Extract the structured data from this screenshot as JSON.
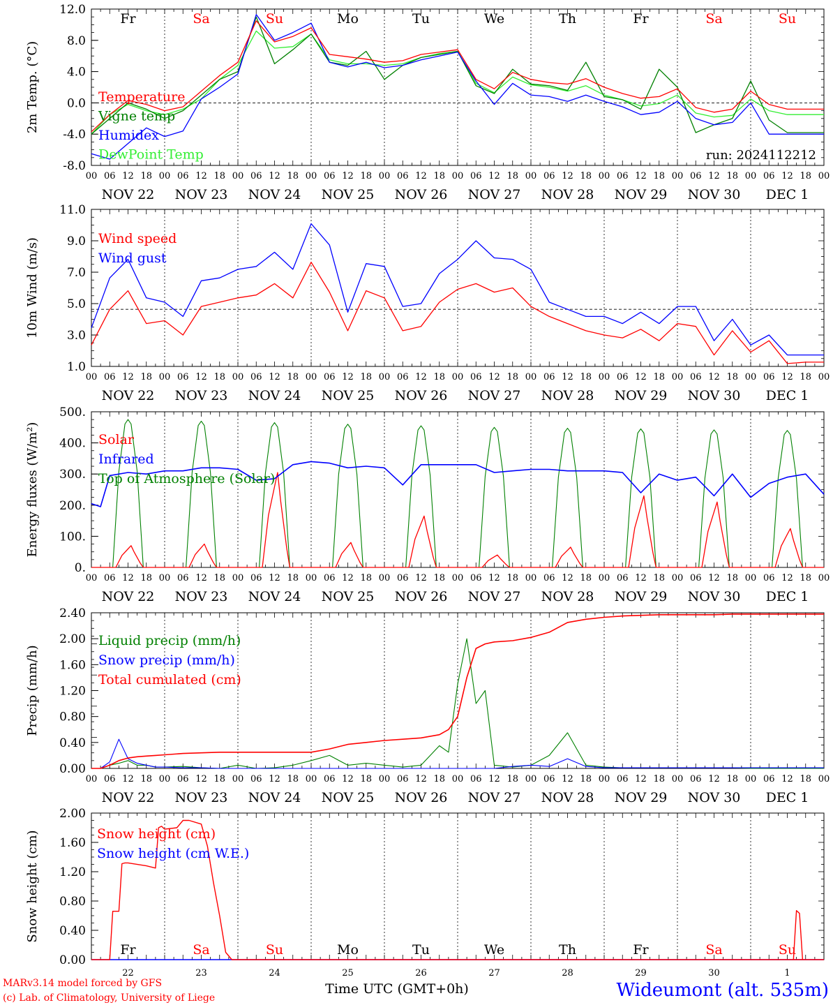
{
  "footer": {
    "credit_line1": "MARv3.14 model forced by GFS",
    "credit_line2": "(c) Lab. of Climatology, University of Liege",
    "time_label": "Time UTC (GMT+0h)",
    "station": "Wideumont (alt. 535m)"
  },
  "colors": {
    "red": "#ff0000",
    "blue": "#0000ff",
    "green": "#008000",
    "lightgreen": "#33ee33",
    "black": "#000000"
  },
  "common": {
    "day_labels": [
      "Fr",
      "Sa",
      "Su",
      "Mo",
      "Tu",
      "We",
      "Th",
      "Fr",
      "Sa",
      "Su"
    ],
    "day_label_colors": [
      "black",
      "red",
      "red",
      "black",
      "black",
      "black",
      "black",
      "black",
      "red",
      "red"
    ],
    "date_labels": [
      "NOV 22",
      "NOV 23",
      "NOV 24",
      "NOV 25",
      "NOV 26",
      "NOV 27",
      "NOV 28",
      "NOV 29",
      "NOV 30",
      "DEC  1"
    ],
    "hour_labels": [
      "00",
      "06",
      "12",
      "18"
    ],
    "bottom_day_numbers": [
      "22",
      "23",
      "24",
      "25",
      "26",
      "27",
      "28",
      "29",
      "30",
      "1"
    ]
  },
  "chart_data": [
    {
      "type": "line",
      "ylabel": "2m Temp. (°C)",
      "ylim": [
        -8,
        12
      ],
      "yticks": [
        "-8.0",
        "-4.0",
        "0.0",
        "4.0",
        "8.0",
        "12.0"
      ],
      "reference_line": 0,
      "annotation": "run: 2024112212",
      "x_hours": [
        0,
        6,
        12,
        18,
        24,
        30,
        36,
        42,
        48,
        54,
        60,
        66,
        72,
        78,
        84,
        90,
        96,
        102,
        108,
        114,
        120,
        126,
        132,
        138,
        144,
        150,
        156,
        162,
        168,
        174,
        180,
        186,
        192,
        198,
        204,
        210,
        216,
        222,
        228,
        234,
        240
      ],
      "series": [
        {
          "name": "Temperature",
          "color": "red",
          "values": [
            -3.7,
            -1.5,
            0.3,
            -0.2,
            -1.0,
            -0.5,
            1.5,
            3.5,
            5.2,
            10.5,
            7.8,
            8.5,
            9.6,
            6.2,
            5.9,
            5.6,
            5.2,
            5.4,
            6.2,
            6.5,
            6.8,
            3.0,
            1.8,
            3.9,
            3.0,
            2.6,
            2.4,
            3.1,
            2.0,
            1.2,
            0.6,
            0.8,
            1.8,
            -0.6,
            -1.2,
            -0.8,
            1.5,
            -0.2,
            -0.8,
            -0.8,
            -0.8
          ]
        },
        {
          "name": "Vigne temp",
          "color": "green",
          "values": [
            -4.0,
            -2.0,
            0.0,
            -0.8,
            -2.0,
            -1.0,
            1.0,
            3.0,
            4.0,
            11.0,
            5.0,
            6.8,
            8.8,
            5.2,
            4.8,
            6.6,
            3.0,
            4.8,
            5.8,
            6.2,
            6.6,
            2.2,
            1.2,
            4.3,
            2.4,
            2.2,
            1.6,
            5.2,
            0.8,
            0.4,
            -0.8,
            4.3,
            2.0,
            -3.8,
            -2.8,
            -2.0,
            2.8,
            -2.2,
            -3.8,
            -3.8,
            -3.8
          ]
        },
        {
          "name": "Humidex",
          "color": "blue",
          "values": [
            -6.5,
            -7.2,
            -5.2,
            -3.2,
            -4.3,
            -3.6,
            0.5,
            2.0,
            3.7,
            11.3,
            8.0,
            9.0,
            10.2,
            5.2,
            4.6,
            5.2,
            4.5,
            4.8,
            5.5,
            6.0,
            6.5,
            2.8,
            -0.2,
            2.5,
            1.0,
            0.8,
            0.2,
            1.0,
            0.2,
            -0.5,
            -1.5,
            -1.2,
            0.2,
            -2.0,
            -2.8,
            -2.5,
            0.0,
            -4.0,
            -4.0,
            -4.0,
            -4.0
          ]
        },
        {
          "name": "DewPoint Temp",
          "color": "lightgreen",
          "values": [
            -4.0,
            -1.5,
            -0.2,
            -1.0,
            -1.5,
            -0.8,
            0.5,
            3.0,
            4.8,
            9.2,
            7.0,
            7.2,
            8.8,
            5.5,
            5.0,
            5.0,
            4.8,
            5.0,
            5.8,
            6.3,
            6.6,
            2.5,
            1.3,
            3.3,
            2.3,
            2.0,
            1.5,
            2.2,
            1.0,
            0.4,
            -0.4,
            -0.1,
            1.0,
            -1.3,
            -1.8,
            -1.6,
            0.5,
            -1.0,
            -1.5,
            -1.5,
            -1.5
          ]
        }
      ]
    },
    {
      "type": "line",
      "ylabel": "10m Wind (m/s)",
      "ylim": [
        1,
        12
      ],
      "yticks": [
        "1.0",
        "3.0",
        "5.0",
        "7.0",
        "9.0",
        "11.0"
      ],
      "reference_line": 5,
      "x_hours": [
        0,
        6,
        12,
        18,
        24,
        30,
        36,
        42,
        48,
        54,
        60,
        66,
        72,
        78,
        84,
        90,
        96,
        102,
        108,
        114,
        120,
        126,
        132,
        138,
        144,
        150,
        156,
        162,
        168,
        174,
        180,
        186,
        192,
        198,
        204,
        210,
        216,
        222,
        228,
        234,
        240
      ],
      "series": [
        {
          "name": "Wind speed",
          "color": "red",
          "values": [
            2.5,
            5.0,
            6.3,
            4.0,
            4.2,
            3.2,
            5.2,
            5.5,
            5.8,
            6.0,
            6.8,
            5.8,
            8.3,
            6.2,
            3.5,
            6.3,
            5.8,
            3.5,
            3.8,
            5.5,
            6.4,
            6.8,
            6.2,
            6.5,
            5.2,
            4.5,
            4.0,
            3.5,
            3.2,
            3.0,
            3.6,
            2.8,
            4.0,
            3.8,
            1.8,
            3.5,
            2.0,
            2.8,
            1.2,
            1.3,
            1.3
          ]
        },
        {
          "name": "Wind gust",
          "color": "blue",
          "values": [
            3.7,
            7.2,
            8.5,
            5.8,
            5.5,
            4.5,
            7.0,
            7.2,
            7.8,
            8.0,
            9.0,
            7.8,
            11.0,
            9.5,
            4.8,
            8.2,
            8.0,
            5.2,
            5.4,
            7.5,
            8.5,
            9.8,
            8.6,
            8.5,
            7.8,
            5.5,
            5.0,
            4.5,
            4.5,
            4.0,
            4.8,
            4.0,
            5.2,
            5.2,
            2.8,
            4.3,
            2.5,
            3.2,
            1.8,
            1.8,
            1.8
          ]
        }
      ]
    },
    {
      "type": "line",
      "ylabel": "Energy fluxes (W/m²)",
      "ylim": [
        0,
        500
      ],
      "yticks": [
        "0.",
        "100.",
        "200.",
        "300.",
        "400.",
        "500."
      ],
      "series": [
        {
          "name": "Solar",
          "color": "red",
          "day_peaks": [
            70,
            75,
            305,
            80,
            165,
            40,
            65,
            230,
            210,
            125
          ]
        },
        {
          "name": "Infrared",
          "color": "blue",
          "x_hours": [
            0,
            3,
            6,
            12,
            18,
            24,
            30,
            36,
            42,
            48,
            54,
            60,
            66,
            72,
            78,
            84,
            90,
            96,
            102,
            108,
            114,
            120,
            126,
            132,
            138,
            144,
            150,
            156,
            162,
            168,
            174,
            180,
            186,
            192,
            198,
            204,
            210,
            216,
            222,
            228,
            234,
            240
          ],
          "values": [
            205,
            195,
            295,
            305,
            300,
            310,
            310,
            320,
            320,
            315,
            280,
            285,
            330,
            340,
            335,
            320,
            325,
            320,
            265,
            330,
            330,
            330,
            330,
            305,
            310,
            315,
            315,
            310,
            310,
            310,
            305,
            240,
            300,
            280,
            290,
            230,
            300,
            225,
            270,
            290,
            300,
            235
          ]
        },
        {
          "name": "Top of Atmosphere (Solar)",
          "color": "green",
          "day_peaks": [
            475,
            470,
            465,
            460,
            455,
            450,
            447,
            445,
            442,
            440
          ]
        }
      ]
    },
    {
      "type": "line",
      "ylabel": "Precip (mm/h)",
      "ylim": [
        0,
        2.4
      ],
      "yticks": [
        "0.00",
        "0.40",
        "0.80",
        "1.20",
        "1.60",
        "2.00",
        "2.40"
      ],
      "x_hours": [
        0,
        3,
        6,
        9,
        12,
        15,
        18,
        21,
        24,
        30,
        36,
        42,
        48,
        54,
        60,
        66,
        72,
        78,
        84,
        90,
        96,
        102,
        108,
        114,
        117,
        120,
        123,
        126,
        129,
        132,
        138,
        144,
        150,
        156,
        162,
        168,
        174,
        180,
        186,
        192,
        198,
        204,
        210,
        216,
        222,
        228,
        234,
        240
      ],
      "series": [
        {
          "name": "Liquid precip (mm/h)",
          "color": "green",
          "values": [
            0,
            0,
            0.05,
            0.08,
            0.12,
            0.05,
            0.05,
            0.02,
            0.02,
            0.03,
            0.01,
            0,
            0.05,
            0,
            0.01,
            0.05,
            0.12,
            0.2,
            0.05,
            0.08,
            0.05,
            0.02,
            0.05,
            0.35,
            0.25,
            1.3,
            2.0,
            1.0,
            1.2,
            0.05,
            0.02,
            0.05,
            0.2,
            0.55,
            0.05,
            0.02,
            0.01,
            0.01,
            0.01,
            0.01,
            0.01,
            0.01,
            0.01,
            0,
            0,
            0,
            0,
            0
          ]
        },
        {
          "name": "Snow precip (mm/h)",
          "color": "blue",
          "values": [
            0,
            0,
            0.1,
            0.45,
            0.15,
            0.08,
            0.05,
            0.02,
            0.02,
            0.01,
            0.01,
            0,
            0,
            0,
            0,
            0,
            0,
            0,
            0,
            0,
            0,
            0,
            0,
            0,
            0,
            0,
            0,
            0,
            0,
            0,
            0.03,
            0.05,
            0.03,
            0.15,
            0.03,
            0.01,
            0.01,
            0.01,
            0.01,
            0.01,
            0.01,
            0.01,
            0.01,
            0.01,
            0.01,
            0.01,
            0.01,
            0.01
          ]
        },
        {
          "name": "Total cumulated (cm)",
          "color": "red",
          "values": [
            0,
            0,
            0.05,
            0.12,
            0.16,
            0.18,
            0.19,
            0.2,
            0.21,
            0.23,
            0.24,
            0.25,
            0.25,
            0.25,
            0.25,
            0.25,
            0.25,
            0.3,
            0.37,
            0.4,
            0.43,
            0.45,
            0.47,
            0.52,
            0.6,
            0.8,
            1.4,
            1.85,
            1.92,
            1.95,
            1.97,
            2.02,
            2.1,
            2.25,
            2.3,
            2.33,
            2.35,
            2.36,
            2.37,
            2.37,
            2.37,
            2.37,
            2.38,
            2.38,
            2.38,
            2.38,
            2.38,
            2.38
          ]
        }
      ]
    },
    {
      "type": "line",
      "ylabel": "Snow height (cm)",
      "ylim": [
        0,
        2
      ],
      "yticks": [
        "0.00",
        "0.40",
        "0.80",
        "1.20",
        "1.60",
        "2.00"
      ],
      "x_hours": [
        0,
        6,
        7,
        8,
        9,
        10,
        11,
        12,
        18,
        21,
        22,
        23,
        24,
        28,
        30,
        32,
        36,
        38,
        40,
        42,
        44,
        46,
        47,
        48,
        240
      ],
      "series": [
        {
          "name": "Snow height (cm)",
          "color": "red",
          "values": [
            0,
            0,
            0.66,
            0.66,
            0.66,
            1.31,
            1.32,
            1.32,
            1.28,
            1.25,
            1.8,
            1.82,
            1.78,
            1.8,
            1.9,
            1.9,
            1.85,
            1.55,
            1.05,
            0.6,
            0.1,
            0,
            0,
            0,
            0
          ],
          "late_spike": {
            "hours": [
              230,
              231,
              232,
              233
            ],
            "values": [
              0,
              0.67,
              0.63,
              0
            ]
          }
        },
        {
          "name": "Snow height (cm W.E.)",
          "color": "blue",
          "values": [
            0,
            0,
            0,
            0,
            0,
            0,
            0,
            0,
            0,
            0,
            0,
            0,
            0,
            0,
            0,
            0,
            0,
            0,
            0,
            0,
            0,
            0,
            0,
            0,
            0
          ]
        }
      ]
    }
  ]
}
